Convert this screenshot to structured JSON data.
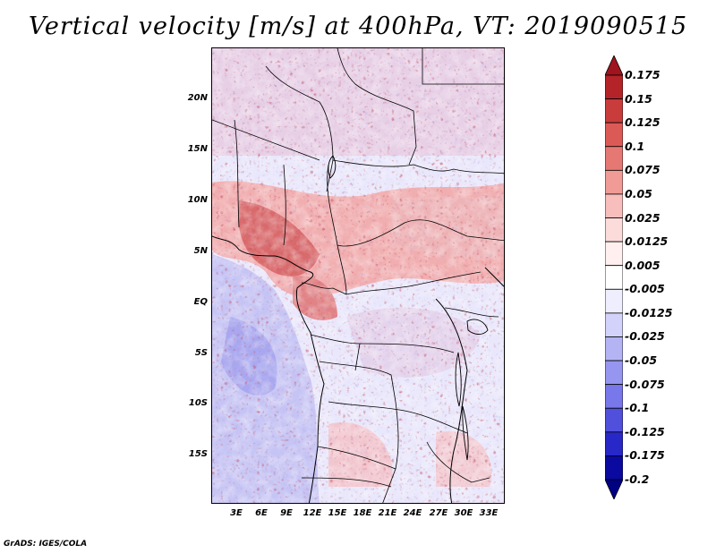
{
  "title": "Vertical velocity [m/s] at 400hPa, VT: 2019090515",
  "credit": "GrADS: IGES/COLA",
  "lat_labels": [
    "20N",
    "15N",
    "10N",
    "5N",
    "EQ",
    "5S",
    "10S",
    "15S"
  ],
  "lon_labels": [
    "3E",
    "6E",
    "9E",
    "12E",
    "15E",
    "18E",
    "21E",
    "24E",
    "27E",
    "30E",
    "33E"
  ],
  "colorbar": {
    "labels": [
      "0.175",
      "0.15",
      "0.125",
      "0.1",
      "0.075",
      "0.05",
      "0.025",
      "0.0125",
      "0.005",
      "-0.005",
      "-0.0125",
      "-0.025",
      "-0.05",
      "-0.075",
      "-0.1",
      "-0.125",
      "-0.175",
      "-0.2"
    ],
    "colors": [
      "#a0141e",
      "#b42328",
      "#c83c3c",
      "#dc5a55",
      "#e67873",
      "#f09b96",
      "#f7bebb",
      "#fbdcda",
      "#fff0ef",
      "#ffffff",
      "#eeeeff",
      "#d2d2fa",
      "#b4b4f5",
      "#9696f0",
      "#7878eb",
      "#5050dc",
      "#2828c8",
      "#0a0aa0",
      "#000082"
    ]
  }
}
